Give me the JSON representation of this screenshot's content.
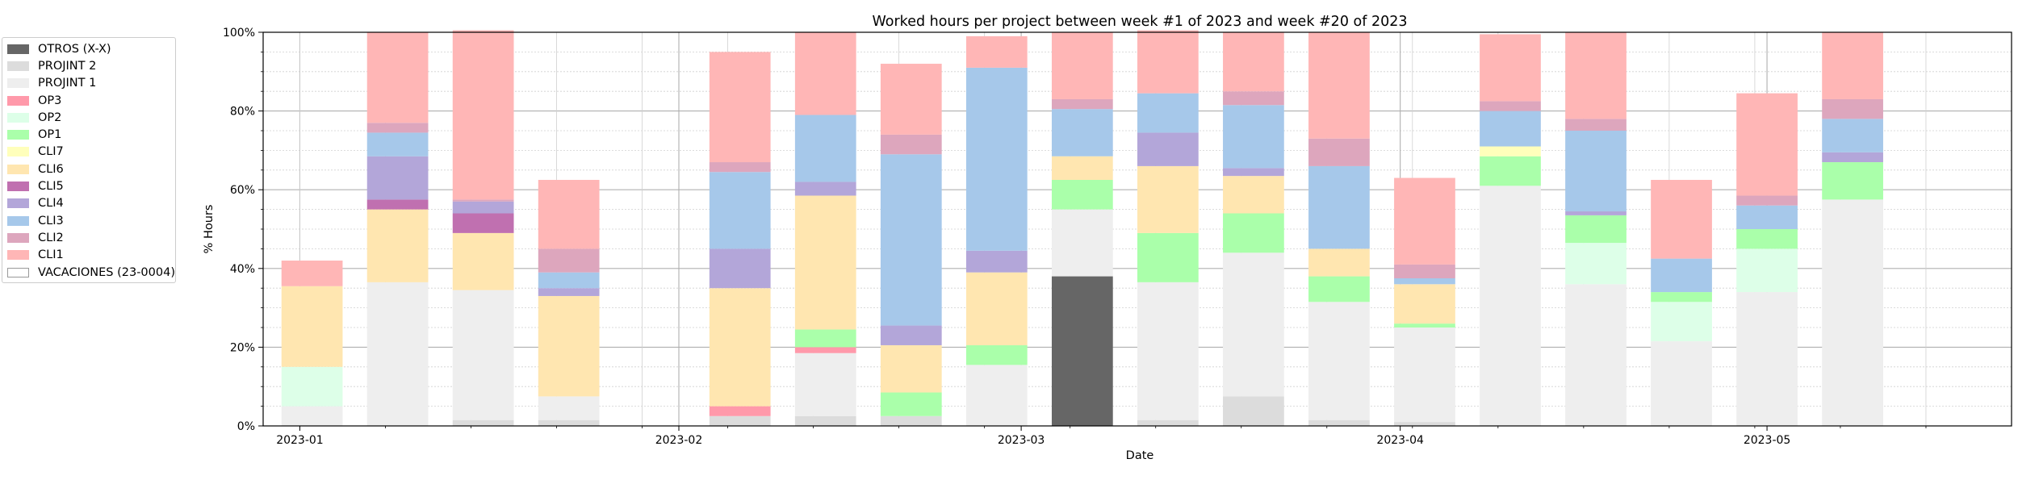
{
  "chart_data": {
    "type": "bar",
    "stacked": true,
    "title": "Worked hours per project between week #1 of 2023 and week #20 of 2023",
    "xlabel": "Date",
    "ylabel": "% Hours",
    "ylim": [
      0,
      100
    ],
    "yticks": [
      "0%",
      "20%",
      "40%",
      "60%",
      "80%",
      "100%"
    ],
    "x_axis": {
      "type": "date",
      "range": [
        "2022-12-29",
        "2023-05-21"
      ],
      "tick_labels": [
        "2023-01",
        "2023-02",
        "2023-03",
        "2023-04",
        "2023-05"
      ],
      "tick_dates": [
        "2023-01-01",
        "2023-02-01",
        "2023-03-01",
        "2023-04-01",
        "2023-05-01"
      ]
    },
    "grid": true,
    "legend_position": "outside-left-top",
    "bar_width_days": 5,
    "categories": [
      "2023-01-02",
      "2023-01-09",
      "2023-01-16",
      "2023-01-23",
      "2023-01-30",
      "2023-02-06",
      "2023-02-13",
      "2023-02-20",
      "2023-02-27",
      "2023-03-06",
      "2023-03-13",
      "2023-03-20",
      "2023-03-27",
      "2023-04-03",
      "2023-04-10",
      "2023-04-17",
      "2023-04-24",
      "2023-05-01",
      "2023-05-08",
      "2023-05-15"
    ],
    "series": [
      {
        "name": "OTROS (X-X)",
        "color": "#666666",
        "values": [
          0,
          0,
          0,
          0,
          0,
          0,
          0,
          0,
          0,
          38,
          0,
          0,
          0,
          0,
          0,
          0,
          0,
          0,
          0,
          0
        ]
      },
      {
        "name": "PROJINT 2",
        "color": "#dcdcdc",
        "values": [
          0,
          0,
          1.5,
          1.5,
          0,
          2.5,
          2.5,
          2.5,
          0,
          0,
          1.5,
          7.5,
          1.5,
          1,
          0,
          0,
          0,
          0,
          0,
          0
        ]
      },
      {
        "name": "PROJINT 1",
        "color": "#eeeeee",
        "values": [
          5,
          36.5,
          33,
          6,
          0,
          0,
          16,
          0,
          15.5,
          17,
          35,
          36.5,
          30,
          24,
          61,
          36,
          21.5,
          34,
          57.5,
          0
        ]
      },
      {
        "name": "OP3",
        "color": "#ff99aa",
        "values": [
          0,
          0,
          0,
          0,
          0,
          2.5,
          1.5,
          0,
          0,
          0,
          0,
          0,
          0,
          0,
          0,
          0,
          0,
          0,
          0,
          0
        ]
      },
      {
        "name": "OP2",
        "color": "#ddffe8",
        "values": [
          10,
          0,
          0,
          0,
          0,
          0,
          0,
          0,
          0,
          0,
          0,
          0,
          0,
          0,
          0,
          10.5,
          10,
          11,
          0,
          0
        ]
      },
      {
        "name": "OP1",
        "color": "#aaffaa",
        "values": [
          0,
          0,
          0,
          0,
          0,
          0,
          4.5,
          6,
          5,
          7.5,
          12.5,
          10,
          6.5,
          1,
          7.5,
          7,
          2.5,
          5,
          9.5,
          0
        ]
      },
      {
        "name": "CLI7",
        "color": "#ffffbb",
        "values": [
          0,
          0,
          0,
          0,
          0,
          0,
          0,
          0,
          0,
          0,
          0,
          0,
          0,
          0,
          2.5,
          0,
          0,
          0,
          0,
          0
        ]
      },
      {
        "name": "CLI6",
        "color": "#ffe6b0",
        "values": [
          20.5,
          18.5,
          14.5,
          25.5,
          0,
          30,
          34,
          12,
          18.5,
          6,
          17,
          9.5,
          7,
          10,
          0,
          0,
          0,
          0,
          0,
          0
        ]
      },
      {
        "name": "CLI5",
        "color": "#c070b0",
        "values": [
          0,
          2.5,
          5,
          0,
          0,
          0,
          0,
          0,
          0,
          0,
          0,
          0,
          0,
          0,
          0,
          0,
          0,
          0,
          0,
          0
        ]
      },
      {
        "name": "CLI4",
        "color": "#b3a6d9",
        "values": [
          0,
          11,
          3,
          2,
          0,
          10,
          3.5,
          5,
          5.5,
          0,
          8.5,
          2,
          0,
          0,
          0,
          1,
          0,
          0,
          2.5,
          0
        ]
      },
      {
        "name": "CLI3",
        "color": "#a6c8ea",
        "values": [
          0,
          6,
          0,
          4,
          0,
          19.5,
          17,
          43.5,
          46.5,
          12,
          10,
          16,
          21,
          1.5,
          9,
          20.5,
          8.5,
          6,
          8.5,
          0
        ]
      },
      {
        "name": "CLI2",
        "color": "#dda6bd",
        "values": [
          0,
          2.5,
          0.5,
          6,
          0,
          2.5,
          0,
          5,
          0,
          2.5,
          0,
          3.5,
          7,
          3.5,
          2.5,
          3,
          0,
          2.5,
          5,
          0
        ]
      },
      {
        "name": "CLI1",
        "color": "#ffb6b6",
        "values": [
          6.5,
          23,
          43,
          17.5,
          0,
          28,
          21,
          18,
          8,
          17,
          16,
          15,
          27,
          22,
          17,
          22,
          20,
          26,
          17,
          0
        ]
      },
      {
        "name": "VACACIONES (23-0004)",
        "color": "#ffffff",
        "values": [
          0,
          0,
          0,
          0,
          0,
          0,
          0,
          0,
          0,
          0,
          0,
          0,
          0,
          0,
          0,
          0,
          0,
          0,
          0,
          0
        ]
      }
    ]
  }
}
